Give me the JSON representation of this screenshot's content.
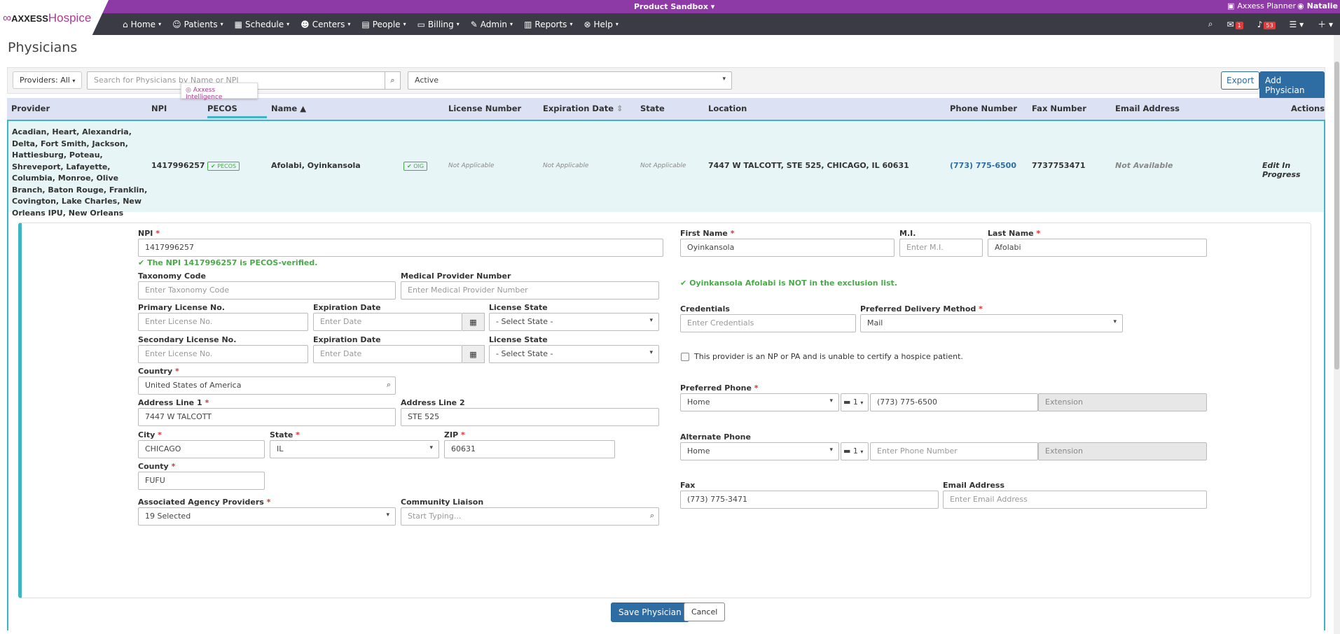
{
  "app": {
    "brand_a": "AXXESS",
    "brand_b": "Hospice",
    "sandbox": "Product Sandbox",
    "planner": "Axxess Planner",
    "user": "Natalie"
  },
  "nav": [
    "Home",
    "Patients",
    "Schedule",
    "Centers",
    "People",
    "Billing",
    "Admin",
    "Reports",
    "Help"
  ],
  "nav_badges": {
    "mail": "1",
    "alerts": "53"
  },
  "page": {
    "title": "Physicians"
  },
  "filters": {
    "providers": "Providers: All",
    "search_placeholder": "Search for Physicians by Name or NPI",
    "status": "Active",
    "export": "Export",
    "add": "Add Physician",
    "ai": "Axxess Intelligence"
  },
  "columns": [
    "Provider",
    "NPI",
    "PECOS",
    "Name",
    "License Number",
    "Expiration Date",
    "State",
    "Location",
    "Phone Number",
    "Fax Number",
    "Email Address",
    "Actions"
  ],
  "row": {
    "providers": "Acadian, Heart, Alexandria, Delta, Fort Smith, Jackson, Hattiesburg, Poteau, Shreveport, Lafayette, Columbia, Monroe, Olive Branch, Baton Rouge, Franklin, Covington, Lake Charles, New Orleans IPU, New Orleans",
    "npi": "1417996257",
    "pecos": "PECOS",
    "name": "Afolabi, Oyinkansola",
    "oig": "OIG",
    "license": "Not Applicable",
    "expiration": "Not Applicable",
    "state": "Not Applicable",
    "location": "7447 W TALCOTT, STE 525, CHICAGO, IL 60631",
    "phone": "(773) 775-6500",
    "fax": "7737753471",
    "email": "Not Available",
    "action": "Edit In Progress"
  },
  "form": {
    "npi_label": "NPI",
    "npi": "1417996257",
    "npi_ok": "The NPI 1417996257 is PECOS-verified.",
    "first_label": "First Name",
    "first": "Oyinkansola",
    "mi_label": "M.I.",
    "mi_ph": "Enter M.I.",
    "last_label": "Last Name",
    "last": "Afolabi",
    "excl_ok": "Oyinkansola Afolabi is NOT in the exclusion list.",
    "tax_label": "Taxonomy Code",
    "tax_ph": "Enter Taxonomy Code",
    "mpn_label": "Medical Provider Number",
    "mpn_ph": "Enter Medical Provider Number",
    "pl_label": "Primary License No.",
    "lic_ph": "Enter License No.",
    "exp_label": "Expiration Date",
    "date_ph": "Enter Date",
    "ls_label": "License State",
    "state_sel": "- Select State -",
    "sl_label": "Secondary License No.",
    "cred_label": "Credentials",
    "cred_ph": "Enter Credentials",
    "pdm_label": "Preferred Delivery Method",
    "pdm": "Mail",
    "np_text": "This provider is an NP or PA and is unable to certify a hospice patient.",
    "country_label": "Country",
    "country": "United States of America",
    "a1_label": "Address Line 1",
    "a1": "7447 W TALCOTT",
    "a2_label": "Address Line 2",
    "a2": "STE 525",
    "city_label": "City",
    "city": "CHICAGO",
    "st_label": "State",
    "st": "IL",
    "zip_label": "ZIP",
    "zip": "60631",
    "county_label": "County",
    "county": "FUFU",
    "aap_label": "Associated Agency Providers",
    "aap": "19 Selected",
    "cl_label": "Community Liaison",
    "cl_ph": "Start Typing...",
    "pp_label": "Preferred Phone",
    "pp_type": "Home",
    "cc": "1",
    "pp": "(773) 775-6500",
    "ext_ph": "Extension",
    "ap_label": "Alternate Phone",
    "ap_type": "Home",
    "ap_ph": "Enter Phone Number",
    "fax_label": "Fax",
    "fax": "(773) 775-3471",
    "email_label": "Email Address",
    "email_ph": "Enter Email Address",
    "save": "Save Physician",
    "cancel": "Cancel"
  }
}
